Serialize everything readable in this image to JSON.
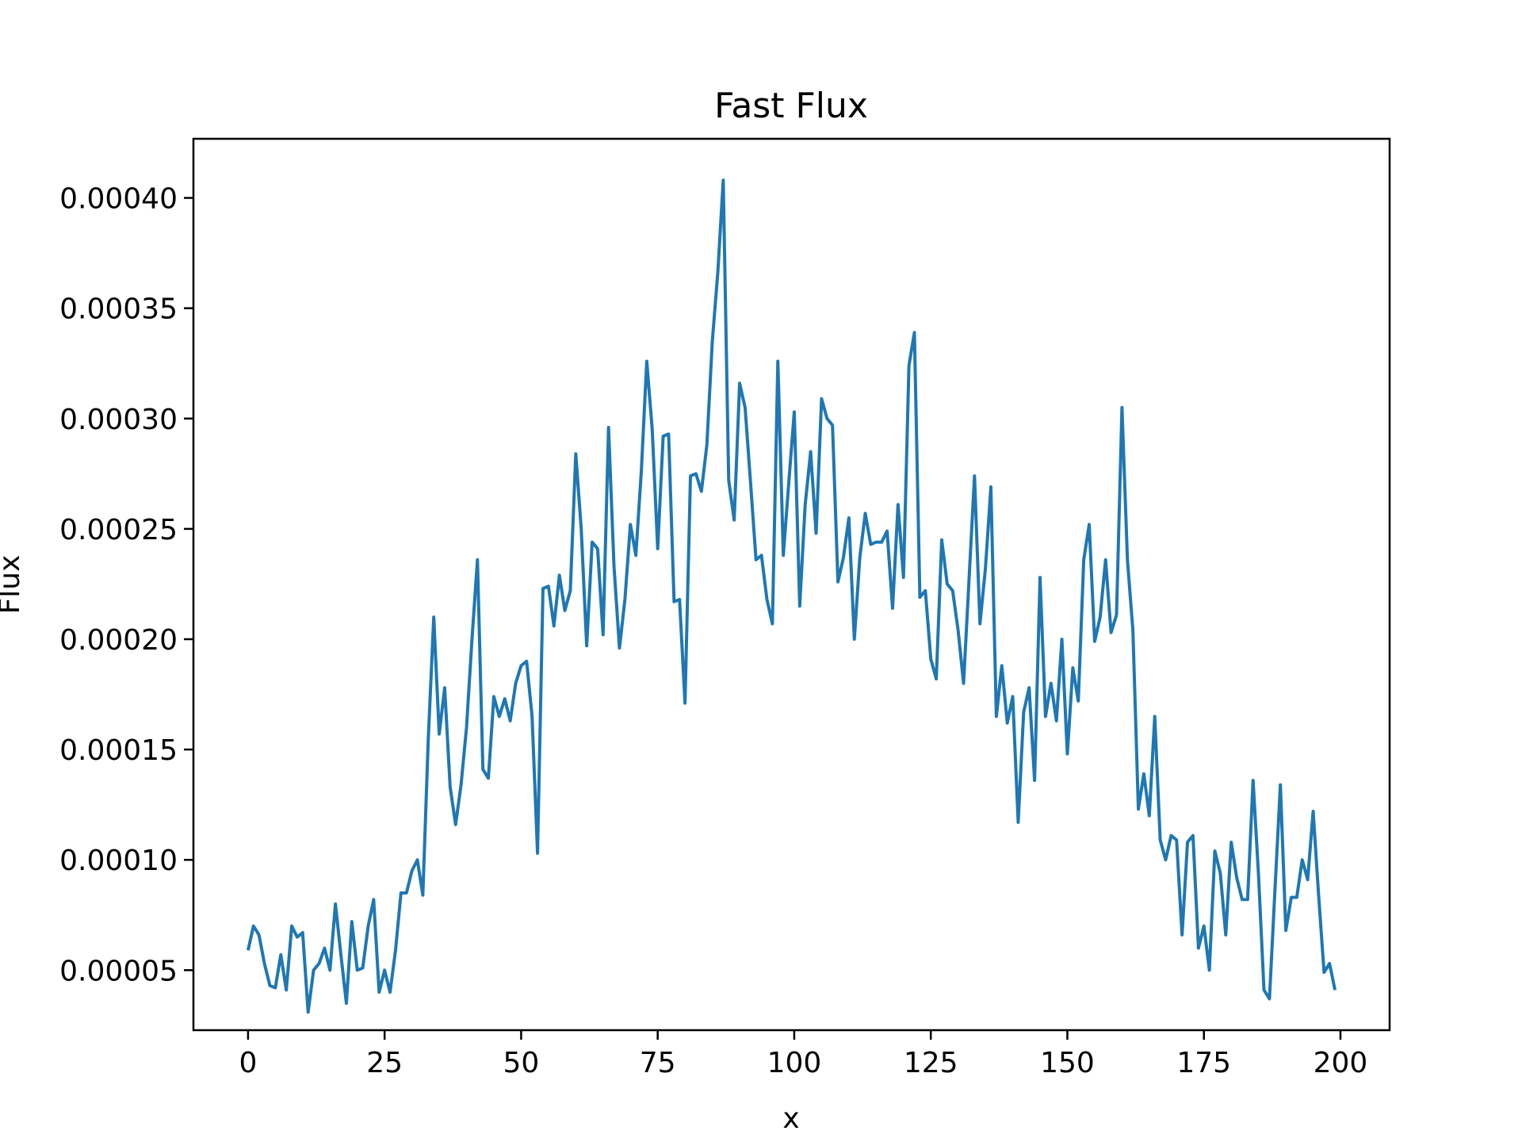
{
  "chart_data": {
    "type": "line",
    "title": "Fast Flux",
    "xlabel": "x",
    "ylabel": "Flux",
    "xlim": [
      -10,
      209
    ],
    "ylim": [
      2.28e-05,
      0.0004268
    ],
    "xticks": [
      0,
      25,
      50,
      75,
      100,
      125,
      150,
      175,
      200
    ],
    "xtick_labels": [
      "0",
      "25",
      "50",
      "75",
      "100",
      "125",
      "150",
      "175",
      "200"
    ],
    "yticks": [
      5e-05,
      0.0001,
      0.00015,
      0.0002,
      0.00025,
      0.0003,
      0.00035,
      0.0004
    ],
    "ytick_labels": [
      "0.00005",
      "0.00010",
      "0.00015",
      "0.00020",
      "0.00025",
      "0.00030",
      "0.00035",
      "0.00040"
    ],
    "grid": false,
    "legend": null,
    "series": [
      {
        "name": "Fast Flux",
        "color": "#1f77b4",
        "x": [
          0,
          1,
          2,
          3,
          4,
          5,
          6,
          7,
          8,
          9,
          10,
          11,
          12,
          13,
          14,
          15,
          16,
          17,
          18,
          19,
          20,
          21,
          22,
          23,
          24,
          25,
          26,
          27,
          28,
          29,
          30,
          31,
          32,
          33,
          34,
          35,
          36,
          37,
          38,
          39,
          40,
          41,
          42,
          43,
          44,
          45,
          46,
          47,
          48,
          49,
          50,
          51,
          52,
          53,
          54,
          55,
          56,
          57,
          58,
          59,
          60,
          61,
          62,
          63,
          64,
          65,
          66,
          67,
          68,
          69,
          70,
          71,
          72,
          73,
          74,
          75,
          76,
          77,
          78,
          79,
          80,
          81,
          82,
          83,
          84,
          85,
          86,
          87,
          88,
          89,
          90,
          91,
          92,
          93,
          94,
          95,
          96,
          97,
          98,
          99,
          100,
          101,
          102,
          103,
          104,
          105,
          106,
          107,
          108,
          109,
          110,
          111,
          112,
          113,
          114,
          115,
          116,
          117,
          118,
          119,
          120,
          121,
          122,
          123,
          124,
          125,
          126,
          127,
          128,
          129,
          130,
          131,
          132,
          133,
          134,
          135,
          136,
          137,
          138,
          139,
          140,
          141,
          142,
          143,
          144,
          145,
          146,
          147,
          148,
          149,
          150,
          151,
          152,
          153,
          154,
          155,
          156,
          157,
          158,
          159,
          160,
          161,
          162,
          163,
          164,
          165,
          166,
          167,
          168,
          169,
          170,
          171,
          172,
          173,
          174,
          175,
          176,
          177,
          178,
          179,
          180,
          181,
          182,
          183,
          184,
          185,
          186,
          187,
          188,
          189,
          190,
          191,
          192,
          193,
          194,
          195,
          196,
          197,
          198,
          199
        ],
        "y": [
          5.9e-05,
          7e-05,
          6.6e-05,
          5.3e-05,
          4.3e-05,
          4.2e-05,
          5.7e-05,
          4.1e-05,
          7e-05,
          6.5e-05,
          6.7e-05,
          3.1e-05,
          5e-05,
          5.3e-05,
          6e-05,
          5e-05,
          8e-05,
          5.7e-05,
          3.5e-05,
          7.2e-05,
          5e-05,
          5.1e-05,
          7e-05,
          8.2e-05,
          4e-05,
          5e-05,
          4e-05,
          5.9e-05,
          8.5e-05,
          8.5e-05,
          9.5e-05,
          0.0001,
          8.4e-05,
          0.000155,
          0.00021,
          0.000157,
          0.000178,
          0.000133,
          0.000116,
          0.000134,
          0.00016,
          0.0002,
          0.000236,
          0.000141,
          0.000137,
          0.000174,
          0.000165,
          0.000173,
          0.000163,
          0.00018,
          0.000188,
          0.00019,
          0.000165,
          0.000103,
          0.000223,
          0.000224,
          0.000206,
          0.000229,
          0.000213,
          0.000222,
          0.000284,
          0.00025,
          0.000197,
          0.000244,
          0.000241,
          0.000202,
          0.000296,
          0.000233,
          0.000196,
          0.000218,
          0.000252,
          0.000238,
          0.000276,
          0.000326,
          0.000295,
          0.000241,
          0.000292,
          0.000293,
          0.000217,
          0.000218,
          0.000171,
          0.000274,
          0.000275,
          0.000267,
          0.000288,
          0.000335,
          0.000366,
          0.000408,
          0.000272,
          0.000254,
          0.000316,
          0.000305,
          0.000271,
          0.000236,
          0.000238,
          0.000218,
          0.000207,
          0.000326,
          0.000238,
          0.000271,
          0.000303,
          0.000215,
          0.000261,
          0.000285,
          0.000248,
          0.000309,
          0.0003,
          0.000297,
          0.000226,
          0.000237,
          0.000255,
          0.0002,
          0.000237,
          0.000257,
          0.000243,
          0.000244,
          0.000244,
          0.000249,
          0.000214,
          0.000261,
          0.000228,
          0.000324,
          0.000339,
          0.000219,
          0.000222,
          0.000191,
          0.000182,
          0.000245,
          0.000225,
          0.000222,
          0.000204,
          0.00018,
          0.000227,
          0.000274,
          0.000207,
          0.000232,
          0.000269,
          0.000165,
          0.000188,
          0.000162,
          0.000174,
          0.000117,
          0.000167,
          0.000178,
          0.000136,
          0.000228,
          0.000165,
          0.00018,
          0.000163,
          0.0002,
          0.000148,
          0.000187,
          0.000172,
          0.000236,
          0.000252,
          0.000199,
          0.00021,
          0.000236,
          0.000203,
          0.000211,
          0.000305,
          0.000236,
          0.000204,
          0.000123,
          0.000139,
          0.00012,
          0.000165,
          0.000109,
          0.0001,
          0.000111,
          0.000109,
          6.6e-05,
          0.000108,
          0.000111,
          6e-05,
          7e-05,
          5e-05,
          0.000104,
          9.4e-05,
          6.6e-05,
          0.000108,
          9.2e-05,
          8.2e-05,
          8.2e-05,
          0.000136,
          9.3e-05,
          4.1e-05,
          3.7e-05,
          8.6e-05,
          0.000134,
          6.8e-05,
          8.3e-05,
          8.3e-05,
          0.0001,
          9.1e-05,
          0.000122,
          8.4e-05,
          4.9e-05,
          5.3e-05,
          4.1e-05
        ]
      }
    ]
  }
}
